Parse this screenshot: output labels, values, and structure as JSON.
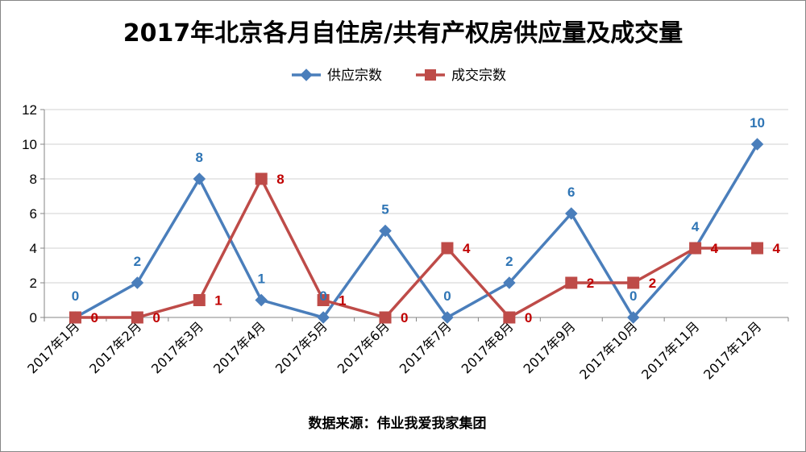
{
  "chart_data": {
    "type": "line",
    "title": "2017年北京各月自住房/共有产权房供应量及成交量",
    "categories": [
      "2017年1月",
      "2017年2月",
      "2017年3月",
      "2017年4月",
      "2017年5月",
      "2017年6月",
      "2017年7月",
      "2017年8月",
      "2017年9月",
      "2017年10月",
      "2017年11月",
      "2017年12月"
    ],
    "series": [
      {
        "name": "供应宗数",
        "values": [
          0,
          2,
          8,
          1,
          0,
          5,
          0,
          2,
          6,
          0,
          4,
          10
        ],
        "color": "#4A7EBB",
        "marker": "diamond",
        "label_color": "#2F75B5"
      },
      {
        "name": "成交宗数",
        "values": [
          0,
          0,
          1,
          8,
          1,
          0,
          4,
          0,
          2,
          2,
          4,
          4
        ],
        "color": "#BE4B48",
        "marker": "square",
        "label_color": "#C00000"
      }
    ],
    "ylim": [
      0,
      12
    ],
    "yticks": [
      0,
      2,
      4,
      6,
      8,
      10,
      12
    ],
    "grid": true,
    "legend": "top-center",
    "source": "数据来源：伟业我爱我家集团"
  }
}
